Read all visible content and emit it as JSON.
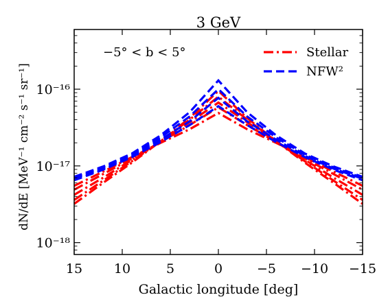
{
  "chart_data": {
    "type": "line",
    "title": "3 GeV",
    "xlabel": "Galactic longitude [deg]",
    "ylabel": "dN/dE [MeV⁻¹ cm⁻² s⁻¹ sr⁻¹]",
    "annotation": "−5° < b < 5°",
    "x_reversed": true,
    "xlim": [
      15,
      -15
    ],
    "ylim": [
      7e-19,
      6e-16
    ],
    "yscale": "log",
    "x_ticks": [
      15,
      10,
      5,
      0,
      -5,
      -10,
      -15
    ],
    "x_tick_labels": [
      "15",
      "10",
      "5",
      "0",
      "−5",
      "−10",
      "−15"
    ],
    "y_ticks": [
      1e-18,
      1e-17,
      1e-16
    ],
    "y_tick_labels": [
      "10⁻¹⁸",
      "10⁻¹⁷",
      "10⁻¹⁶"
    ],
    "grid": false,
    "legend_position": "top-right",
    "legend": [
      {
        "label": "Stellar",
        "color": "#ff0000",
        "dash": "dashdot"
      },
      {
        "label": "NFW²",
        "color": "#0000ff",
        "dash": "dashed"
      }
    ],
    "x": [
      15,
      12,
      9,
      6,
      3,
      0,
      -3,
      -6,
      -9,
      -12,
      -15
    ],
    "series": [
      {
        "group": "Stellar",
        "color": "#ff0000",
        "values": [
          3.2e-18,
          6e-18,
          1.1e-17,
          2.1e-17,
          4.2e-17,
          9.5e-17,
          4.2e-17,
          2.1e-17,
          1.1e-17,
          6e-18,
          3.2e-18
        ]
      },
      {
        "group": "Stellar",
        "color": "#ff0000",
        "values": [
          3.6e-18,
          6.4e-18,
          1.15e-17,
          2.1e-17,
          4e-17,
          8e-17,
          4e-17,
          2.1e-17,
          1.15e-17,
          6.4e-18,
          3.6e-18
        ]
      },
      {
        "group": "Stellar",
        "color": "#ff0000",
        "values": [
          4.2e-18,
          7e-18,
          1.2e-17,
          2.1e-17,
          3.7e-17,
          6.7e-17,
          3.7e-17,
          2.1e-17,
          1.2e-17,
          7e-18,
          4.2e-18
        ]
      },
      {
        "group": "Stellar",
        "color": "#ff0000",
        "values": [
          4.9e-18,
          7.8e-18,
          1.25e-17,
          2.05e-17,
          3.4e-17,
          5.8e-17,
          3.4e-17,
          2.05e-17,
          1.25e-17,
          7.8e-18,
          4.9e-18
        ]
      },
      {
        "group": "Stellar",
        "color": "#ff0000",
        "values": [
          5.5e-18,
          8.4e-18,
          1.3e-17,
          2e-17,
          3e-17,
          4.9e-17,
          3e-17,
          2e-17,
          1.3e-17,
          8.4e-18,
          5.5e-18
        ]
      },
      {
        "group": "NFW²",
        "color": "#0000ff",
        "values": [
          7.2e-18,
          9.8e-18,
          1.45e-17,
          2.5e-17,
          5e-17,
          1.3e-16,
          5e-17,
          2.5e-17,
          1.45e-17,
          9.8e-18,
          7.2e-18
        ]
      },
      {
        "group": "NFW²",
        "color": "#0000ff",
        "values": [
          7e-18,
          9.5e-18,
          1.4e-17,
          2.35e-17,
          4.4e-17,
          1e-16,
          4.4e-17,
          2.35e-17,
          1.4e-17,
          9.5e-18,
          7e-18
        ]
      },
      {
        "group": "NFW²",
        "color": "#0000ff",
        "values": [
          6.8e-18,
          9.2e-18,
          1.35e-17,
          2.2e-17,
          3.8e-17,
          7.7e-17,
          3.8e-17,
          2.2e-17,
          1.35e-17,
          9.2e-18,
          6.8e-18
        ]
      },
      {
        "group": "NFW²",
        "color": "#0000ff",
        "values": [
          6.5e-18,
          8.9e-18,
          1.3e-17,
          2.05e-17,
          3.4e-17,
          6e-17,
          3.4e-17,
          2.05e-17,
          1.3e-17,
          8.9e-18,
          6.5e-18
        ]
      }
    ]
  }
}
